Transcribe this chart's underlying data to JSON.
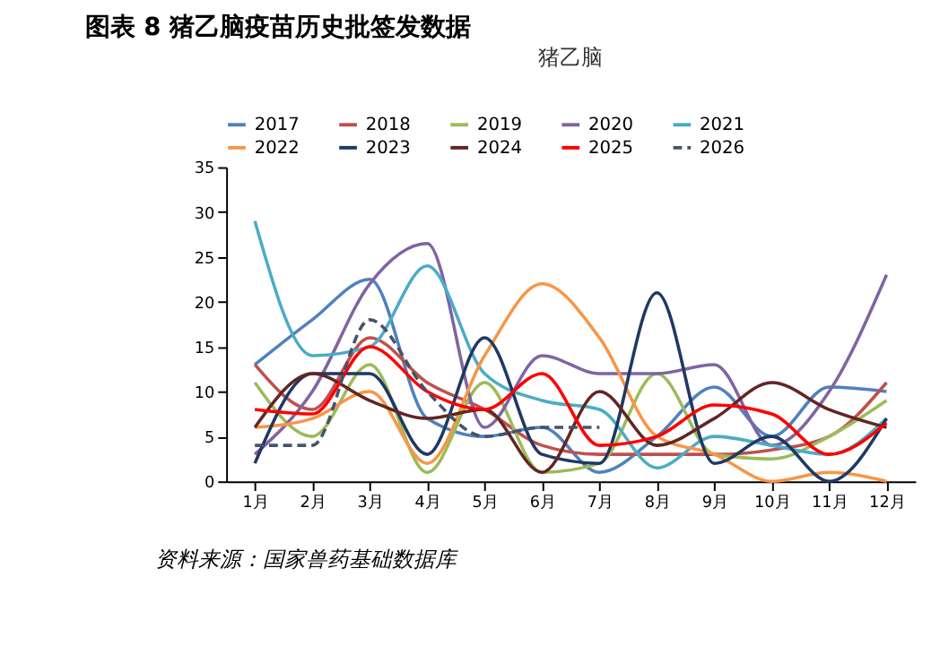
{
  "chart_data": {
    "type": "line",
    "title": "图表 8  猪乙脑疫苗历史批签发数据",
    "subtitle": "猪乙脑",
    "categories": [
      "1月",
      "2月",
      "3月",
      "4月",
      "5月",
      "6月",
      "7月",
      "8月",
      "9月",
      "10月",
      "11月",
      "12月"
    ],
    "series": [
      {
        "name": "2017",
        "color": "#4f81bd",
        "values": [
          13,
          18,
          22.5,
          7,
          5,
          6,
          1,
          5,
          10.5,
          5,
          10.5,
          10
        ]
      },
      {
        "name": "2018",
        "color": "#c0504d",
        "values": [
          13,
          8,
          16,
          11,
          8,
          4,
          3,
          3,
          3,
          3.5,
          5,
          11
        ]
      },
      {
        "name": "2019",
        "color": "#9bbb59",
        "values": [
          11,
          5,
          13,
          1,
          11,
          1,
          2,
          12,
          3,
          2.5,
          5,
          9
        ]
      },
      {
        "name": "2020",
        "color": "#8064a2",
        "values": [
          3,
          10,
          22,
          26.5,
          6,
          14,
          12,
          12,
          13,
          4,
          10,
          23
        ]
      },
      {
        "name": "2021",
        "color": "#4bacc6",
        "values": [
          29,
          14,
          15,
          24,
          12,
          9,
          8,
          1.5,
          5,
          4,
          3,
          7
        ]
      },
      {
        "name": "2022",
        "color": "#f79646",
        "values": [
          6,
          7,
          10,
          2,
          14,
          22,
          16,
          5,
          3,
          0,
          1,
          0
        ]
      },
      {
        "name": "2023",
        "color": "#1f3864",
        "values": [
          2,
          12,
          12,
          3,
          16,
          3,
          2,
          21,
          2,
          5,
          0,
          7
        ]
      },
      {
        "name": "2024",
        "color": "#632523",
        "values": [
          6,
          12,
          9,
          7,
          8,
          1,
          10,
          4,
          7,
          11,
          8,
          6
        ]
      },
      {
        "name": "2025",
        "color": "#ff0000",
        "values": [
          8,
          7.5,
          15,
          10,
          8,
          12,
          4,
          5,
          8.5,
          7.5,
          3,
          6.5
        ]
      },
      {
        "name": "2026",
        "color": "#44546a",
        "line_style": "dashed",
        "values": [
          4,
          4,
          18,
          10,
          5,
          6,
          6,
          null,
          null,
          null,
          null,
          null
        ]
      }
    ],
    "ylim": [
      0,
      35
    ],
    "yticks": [
      0,
      5,
      10,
      15,
      20,
      25,
      30,
      35
    ],
    "grid": false,
    "legend": "top",
    "line_style": "solid",
    "annotations": [
      "资料来源：国家兽药基础数据库"
    ]
  }
}
